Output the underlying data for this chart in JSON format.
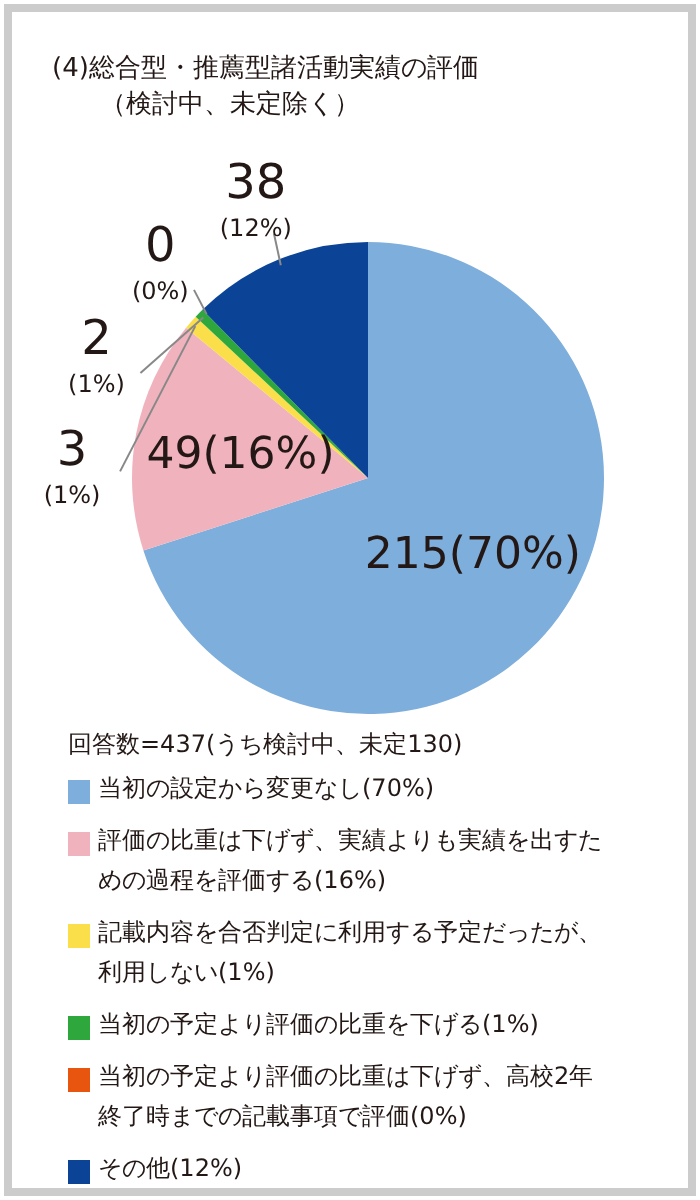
{
  "chart_data": {
    "type": "pie",
    "title": "(4)総合型・推薦型諸活動実績の評価",
    "subtitle": "（検討中、未定除く）",
    "categories": [
      "当初の設定から変更なし(70%)",
      "評価の比重は下げず、実績よりも実績を出すための過程を評価する(16%)",
      "記載内容を合否判定に利用する予定だったが、利用しない(1%)",
      "当初の予定より評価の比重を下げる(1%)",
      "当初の予定より評価の比重は下げず、高校2年終了時までの記載事項で評価(0%)",
      "その他(12%)"
    ],
    "values": [
      215,
      49,
      3,
      2,
      0,
      38
    ],
    "colors": [
      "#7eaedb",
      "#f0b3bd",
      "#fade4a",
      "#2ea83d",
      "#e8550f",
      "#0b4396"
    ],
    "value_labels": [
      "215(70%)",
      "49(16%)",
      "3(1%)",
      "2(1%)",
      "0(0%)",
      "38(12%)"
    ],
    "annotations": [
      "回答数=437(うち検討中、未定130)"
    ],
    "legend": "bottom"
  }
}
